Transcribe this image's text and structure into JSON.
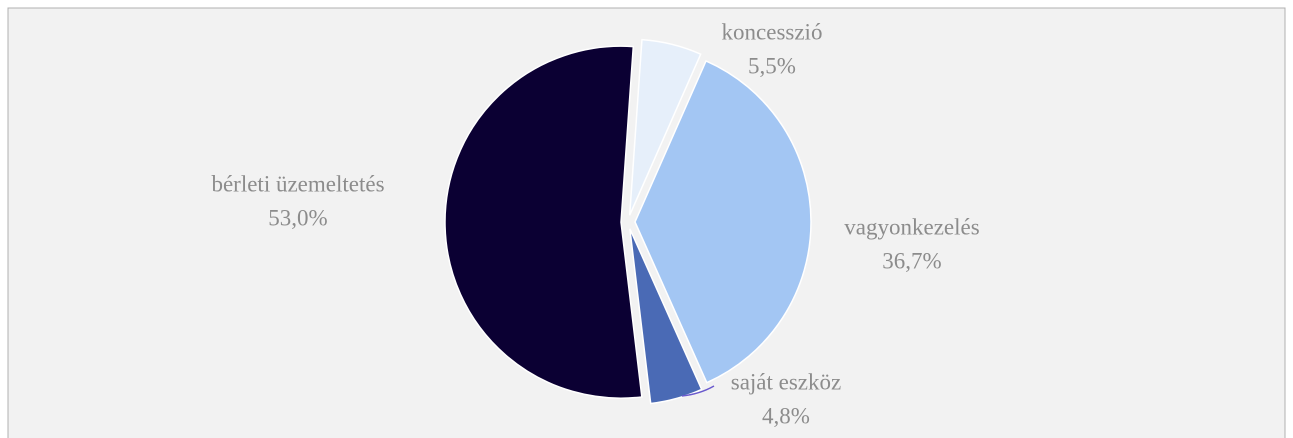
{
  "chart_data": {
    "type": "pie",
    "categories": [
      "koncesszió",
      "vagyonkezelés",
      "saját eszköz",
      "bérleti üzemeltetés"
    ],
    "values": [
      5.5,
      36.7,
      4.8,
      53.0
    ],
    "value_labels": [
      "5,5%",
      "36,7%",
      "4,8%",
      "53,0%"
    ],
    "colors": [
      "#e6effa",
      "#a3c6f3",
      "#4a6ab5",
      "#0b0033"
    ]
  }
}
